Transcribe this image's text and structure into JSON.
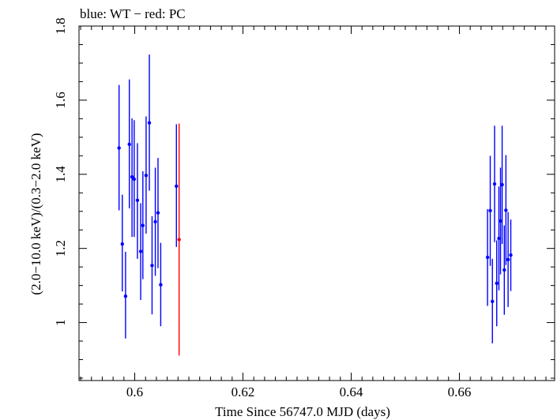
{
  "chart_data": {
    "type": "scatter",
    "title": "blue: WT − red: PC",
    "xlabel": "Time Since 56747.0 MJD (days)",
    "ylabel": "(2.0−10.0 keV)/(0.3−2.0 keV)",
    "xlim": [
      0.5897,
      0.6776
    ],
    "ylim": [
      0.8436,
      1.8
    ],
    "xticks": [
      0.6,
      0.62,
      0.64,
      0.66
    ],
    "xtick_labels": [
      "0.6",
      "0.62",
      "0.64",
      "0.66"
    ],
    "yticks": [
      1.0,
      1.2,
      1.4,
      1.6,
      1.8
    ],
    "ytick_labels": [
      "1",
      "1.2",
      "1.4",
      "1.6",
      "1.8"
    ],
    "grid": false,
    "series": [
      {
        "name": "WT",
        "color": "#0000ff",
        "points": [
          {
            "x": 0.5971,
            "y": 1.471,
            "lo": 1.303,
            "hi": 1.641
          },
          {
            "x": 0.5977,
            "y": 1.212,
            "lo": 1.084,
            "hi": 1.345
          },
          {
            "x": 0.5983,
            "y": 1.071,
            "lo": 0.957,
            "hi": 1.191
          },
          {
            "x": 0.599,
            "y": 1.481,
            "lo": 1.308,
            "hi": 1.656
          },
          {
            "x": 0.5995,
            "y": 1.393,
            "lo": 1.231,
            "hi": 1.551
          },
          {
            "x": 0.5999,
            "y": 1.387,
            "lo": 1.231,
            "hi": 1.546
          },
          {
            "x": 0.6005,
            "y": 1.33,
            "lo": 1.172,
            "hi": 1.484
          },
          {
            "x": 0.6011,
            "y": 1.192,
            "lo": 1.061,
            "hi": 1.322
          },
          {
            "x": 0.6015,
            "y": 1.262,
            "lo": 1.117,
            "hi": 1.408
          },
          {
            "x": 0.6021,
            "y": 1.397,
            "lo": 1.24,
            "hi": 1.556
          },
          {
            "x": 0.6027,
            "y": 1.539,
            "lo": 1.356,
            "hi": 1.723
          },
          {
            "x": 0.6032,
            "y": 1.154,
            "lo": 1.022,
            "hi": 1.287
          },
          {
            "x": 0.6038,
            "y": 1.272,
            "lo": 1.126,
            "hi": 1.418
          },
          {
            "x": 0.6043,
            "y": 1.296,
            "lo": 1.147,
            "hi": 1.444
          },
          {
            "x": 0.6048,
            "y": 1.102,
            "lo": 0.99,
            "hi": 1.215
          },
          {
            "x": 0.6077,
            "y": 1.368,
            "lo": 1.204,
            "hi": 1.535
          },
          {
            "x": 0.6652,
            "y": 1.176,
            "lo": 1.045,
            "hi": 1.306
          },
          {
            "x": 0.6657,
            "y": 1.302,
            "lo": 1.153,
            "hi": 1.45
          },
          {
            "x": 0.6661,
            "y": 1.057,
            "lo": 0.944,
            "hi": 1.172
          },
          {
            "x": 0.6665,
            "y": 1.374,
            "lo": 1.217,
            "hi": 1.531
          },
          {
            "x": 0.6669,
            "y": 1.106,
            "lo": 0.99,
            "hi": 1.222
          },
          {
            "x": 0.6673,
            "y": 1.227,
            "lo": 1.087,
            "hi": 1.367
          },
          {
            "x": 0.6676,
            "y": 1.274,
            "lo": 1.13,
            "hi": 1.418
          },
          {
            "x": 0.6679,
            "y": 1.372,
            "lo": 1.212,
            "hi": 1.531
          },
          {
            "x": 0.6683,
            "y": 1.142,
            "lo": 1.021,
            "hi": 1.262
          },
          {
            "x": 0.6686,
            "y": 1.303,
            "lo": 1.155,
            "hi": 1.452
          },
          {
            "x": 0.669,
            "y": 1.17,
            "lo": 1.042,
            "hi": 1.298
          },
          {
            "x": 0.6695,
            "y": 1.182,
            "lo": 1.085,
            "hi": 1.278
          }
        ]
      },
      {
        "name": "PC",
        "color": "#ff0000",
        "points": [
          {
            "x": 0.6082,
            "y": 1.224,
            "lo": 0.911,
            "hi": 1.537
          }
        ]
      }
    ]
  }
}
